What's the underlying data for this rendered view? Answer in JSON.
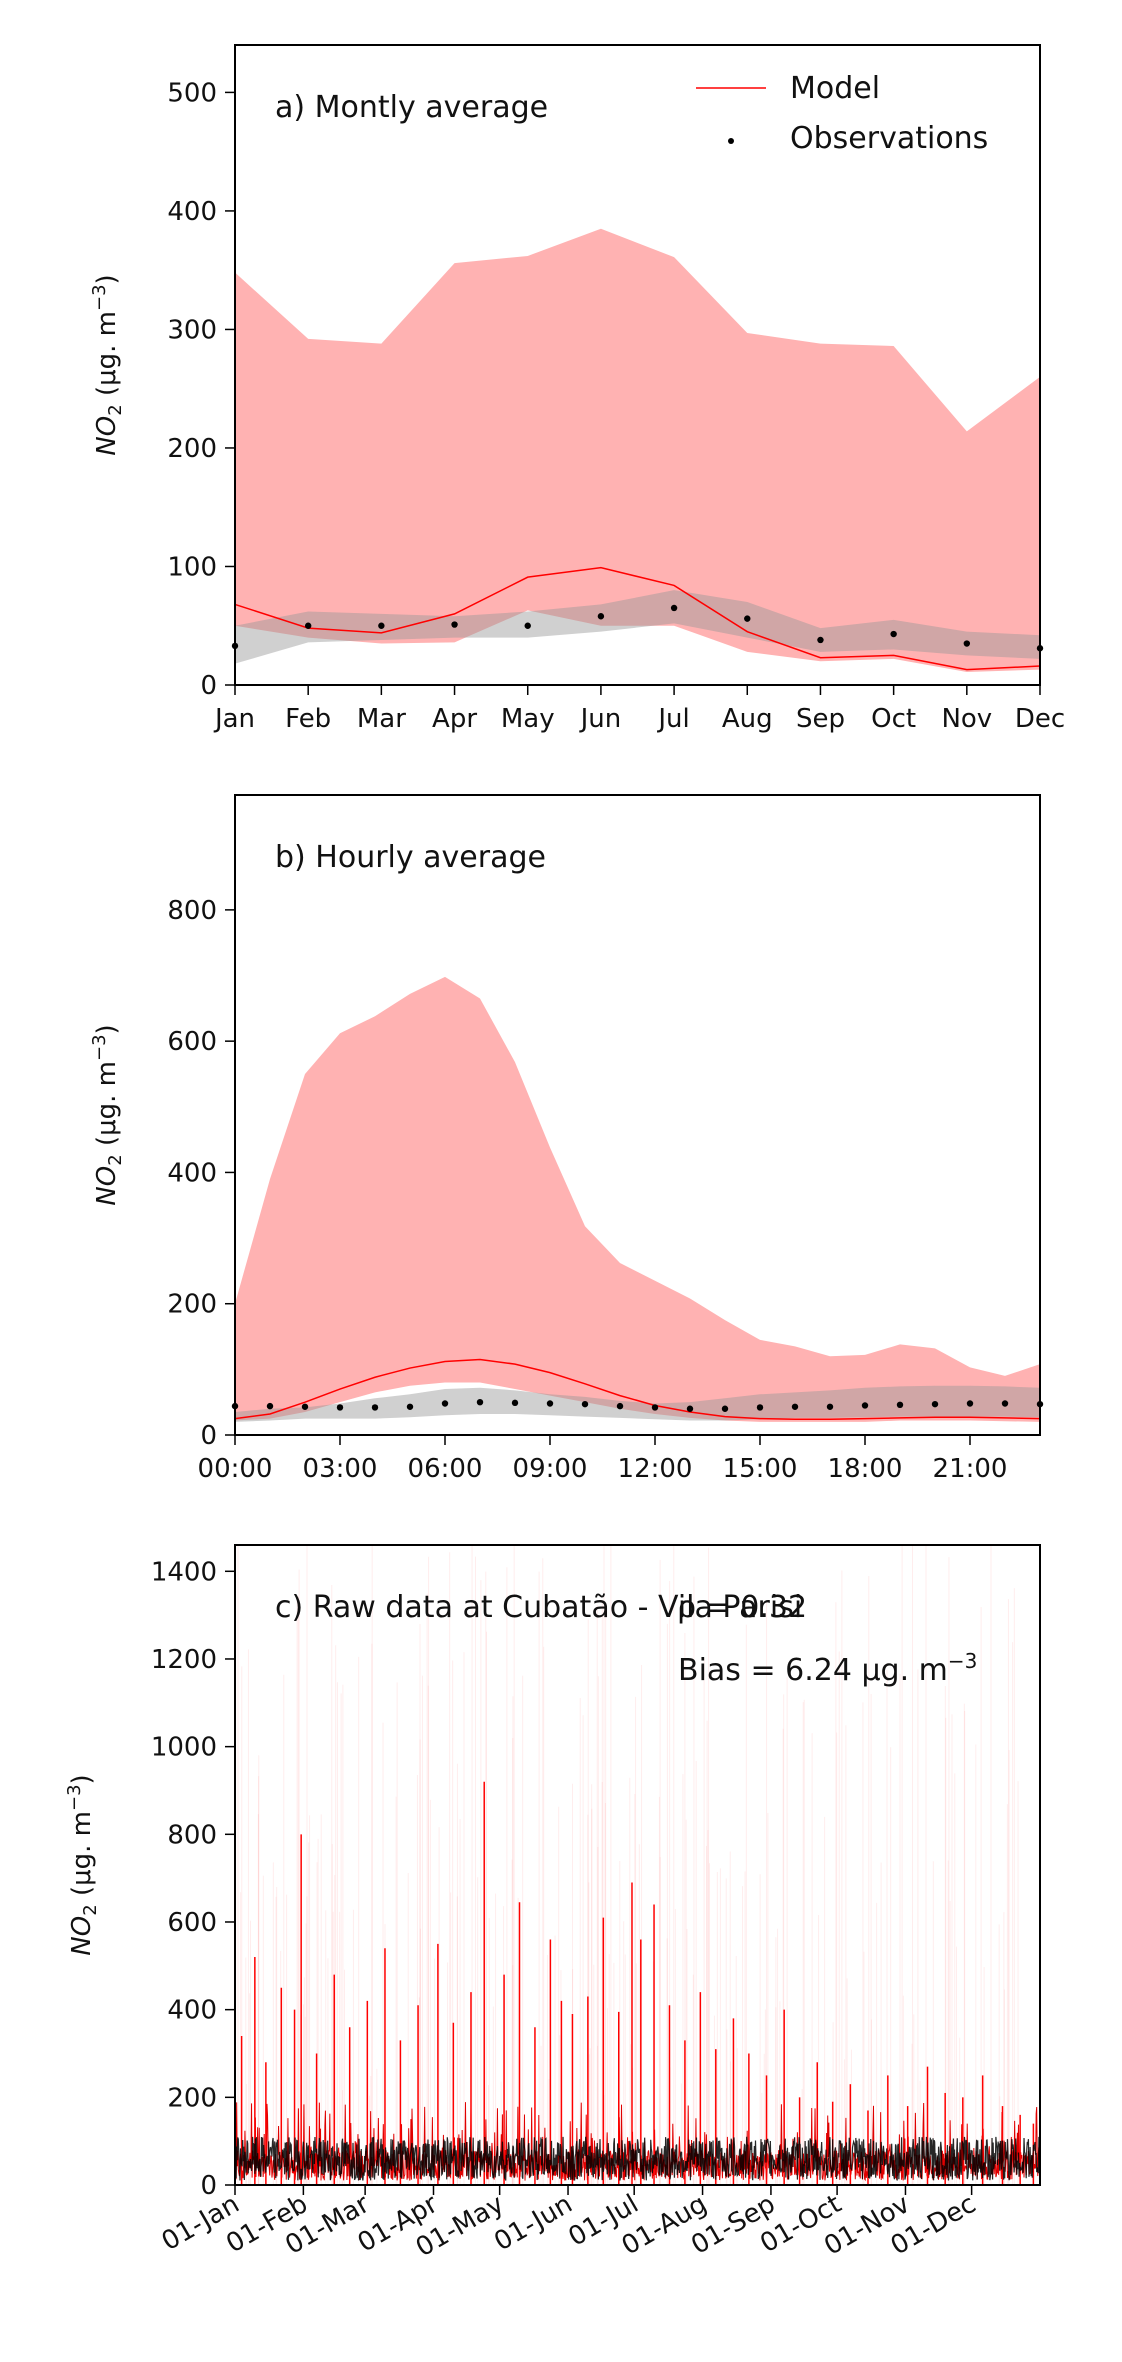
{
  "chart_data": [
    {
      "type": "line",
      "title": "a) Montly average",
      "ylabel_main": "NO",
      "ylabel_sub": "2",
      "ylabel_units": " (μg. m",
      "ylabel_exp": "−3",
      "ylabel_close": ")",
      "ylim": [
        0,
        540
      ],
      "yticks": [
        0,
        100,
        200,
        300,
        400,
        500
      ],
      "categories": [
        "Jan",
        "Feb",
        "Mar",
        "Apr",
        "May",
        "Jun",
        "Jul",
        "Aug",
        "Sep",
        "Oct",
        "Nov",
        "Dec"
      ],
      "legend": {
        "model": "Model",
        "observations": "Observations",
        "position": "top-right"
      },
      "colors": {
        "model": "#ff0000",
        "model_band": "#ffb2b2",
        "obs": "#000000",
        "obs_band": "#b8b8b8"
      },
      "series": [
        {
          "name": "Model",
          "kind": "line",
          "values": [
            68,
            48,
            44,
            60,
            91,
            99,
            84,
            45,
            23,
            25,
            13,
            16
          ]
        },
        {
          "name": "Observations",
          "kind": "points",
          "values": [
            33,
            50,
            50,
            51,
            50,
            58,
            65,
            56,
            38,
            43,
            35,
            31
          ]
        }
      ],
      "model_band": {
        "upper": [
          348,
          292,
          288,
          356,
          362,
          385,
          361,
          297,
          288,
          286,
          214,
          260
        ],
        "lower": [
          50,
          40,
          35,
          36,
          63,
          50,
          50,
          28,
          20,
          22,
          11,
          13
        ]
      },
      "obs_band": {
        "upper": [
          50,
          62,
          60,
          58,
          62,
          68,
          80,
          70,
          48,
          55,
          45,
          42
        ],
        "lower": [
          18,
          36,
          38,
          40,
          40,
          45,
          52,
          40,
          28,
          30,
          25,
          22
        ]
      }
    },
    {
      "type": "line",
      "title": "b) Hourly average",
      "ylabel_main": "NO",
      "ylabel_sub": "2",
      "ylabel_units": " (μg. m",
      "ylabel_exp": "−3",
      "ylabel_close": ")",
      "ylim": [
        0,
        975
      ],
      "yticks": [
        0,
        200,
        400,
        600,
        800
      ],
      "xticks": [
        "00:00",
        "03:00",
        "06:00",
        "09:00",
        "12:00",
        "15:00",
        "18:00",
        "21:00"
      ],
      "x": [
        0,
        1,
        2,
        3,
        4,
        5,
        6,
        7,
        8,
        9,
        10,
        11,
        12,
        13,
        14,
        15,
        16,
        17,
        18,
        19,
        20,
        21,
        22,
        23
      ],
      "series": [
        {
          "name": "Model",
          "kind": "line",
          "values": [
            25,
            32,
            50,
            70,
            88,
            102,
            112,
            115,
            108,
            95,
            78,
            60,
            45,
            35,
            28,
            25,
            24,
            24,
            25,
            26,
            27,
            27,
            26,
            25
          ]
        },
        {
          "name": "Observations",
          "kind": "points",
          "values": [
            44,
            44,
            43,
            42,
            42,
            43,
            48,
            50,
            49,
            48,
            47,
            44,
            42,
            40,
            40,
            42,
            43,
            43,
            45,
            46,
            47,
            48,
            48,
            47
          ]
        }
      ],
      "model_band": {
        "upper": [
          200,
          390,
          550,
          612,
          638,
          672,
          698,
          665,
          568,
          438,
          318,
          262,
          235,
          208,
          175,
          145,
          135,
          120,
          122,
          138,
          132,
          103,
          90,
          108
        ],
        "lower": [
          22,
          25,
          35,
          50,
          65,
          75,
          80,
          80,
          70,
          60,
          50,
          40,
          32,
          26,
          22,
          20,
          20,
          20,
          20,
          22,
          22,
          22,
          21,
          20
        ]
      },
      "obs_band": {
        "upper": [
          35,
          40,
          42,
          48,
          56,
          62,
          70,
          72,
          68,
          62,
          58,
          52,
          48,
          50,
          56,
          62,
          65,
          68,
          72,
          74,
          75,
          75,
          74,
          72
        ],
        "lower": [
          20,
          22,
          25,
          25,
          25,
          27,
          30,
          32,
          32,
          30,
          28,
          26,
          24,
          22,
          22,
          24,
          26,
          26,
          27,
          28,
          28,
          28,
          28,
          27
        ]
      }
    },
    {
      "type": "line",
      "title": "c) Raw data at Cubatão - Vila Parisi",
      "annotation_rho": "ρ = 0.32",
      "annotation_bias": "Bias = 6.24 μg. m",
      "annotation_bias_exp": "−3",
      "ylabel_main": "NO",
      "ylabel_sub": "2",
      "ylabel_units": " (μg. m",
      "ylabel_exp": "−3",
      "ylabel_close": ")",
      "ylim": [
        0,
        1460
      ],
      "yticks": [
        0,
        200,
        400,
        600,
        800,
        1000,
        1200,
        1400
      ],
      "xticks": [
        "01-Jan",
        "01-Feb",
        "01-Mar",
        "01-Apr",
        "01-May",
        "01-Jun",
        "01-Jul",
        "01-Aug",
        "01-Sep",
        "01-Oct",
        "01-Nov",
        "01-Dec"
      ],
      "xtick_days": [
        0,
        31,
        59,
        90,
        120,
        151,
        181,
        212,
        243,
        273,
        304,
        334
      ],
      "xlim_days": [
        0,
        365
      ],
      "model_peaks": [
        {
          "day": 3,
          "value": 340
        },
        {
          "day": 9,
          "value": 520
        },
        {
          "day": 14,
          "value": 280
        },
        {
          "day": 21,
          "value": 450
        },
        {
          "day": 27,
          "value": 400
        },
        {
          "day": 30,
          "value": 800
        },
        {
          "day": 37,
          "value": 300
        },
        {
          "day": 45,
          "value": 480
        },
        {
          "day": 52,
          "value": 360
        },
        {
          "day": 60,
          "value": 420
        },
        {
          "day": 68,
          "value": 540
        },
        {
          "day": 75,
          "value": 330
        },
        {
          "day": 83,
          "value": 410
        },
        {
          "day": 92,
          "value": 550
        },
        {
          "day": 99,
          "value": 370
        },
        {
          "day": 107,
          "value": 440
        },
        {
          "day": 113,
          "value": 920
        },
        {
          "day": 122,
          "value": 480
        },
        {
          "day": 129,
          "value": 645
        },
        {
          "day": 136,
          "value": 360
        },
        {
          "day": 143,
          "value": 560
        },
        {
          "day": 148,
          "value": 420
        },
        {
          "day": 153,
          "value": 390
        },
        {
          "day": 160,
          "value": 430
        },
        {
          "day": 167,
          "value": 610
        },
        {
          "day": 174,
          "value": 395
        },
        {
          "day": 180,
          "value": 690
        },
        {
          "day": 184,
          "value": 560
        },
        {
          "day": 190,
          "value": 640
        },
        {
          "day": 197,
          "value": 410
        },
        {
          "day": 204,
          "value": 330
        },
        {
          "day": 211,
          "value": 440
        },
        {
          "day": 218,
          "value": 310
        },
        {
          "day": 226,
          "value": 380
        },
        {
          "day": 233,
          "value": 300
        },
        {
          "day": 241,
          "value": 250
        },
        {
          "day": 249,
          "value": 400
        },
        {
          "day": 256,
          "value": 200
        },
        {
          "day": 264,
          "value": 280
        },
        {
          "day": 271,
          "value": 190
        },
        {
          "day": 279,
          "value": 230
        },
        {
          "day": 287,
          "value": 170
        },
        {
          "day": 296,
          "value": 250
        },
        {
          "day": 305,
          "value": 180
        },
        {
          "day": 314,
          "value": 270
        },
        {
          "day": 322,
          "value": 210
        },
        {
          "day": 330,
          "value": 200
        },
        {
          "day": 339,
          "value": 250
        },
        {
          "day": 348,
          "value": 180
        },
        {
          "day": 356,
          "value": 160
        },
        {
          "day": 362,
          "value": 140
        }
      ],
      "obs_level_range": [
        0,
        120
      ]
    }
  ]
}
